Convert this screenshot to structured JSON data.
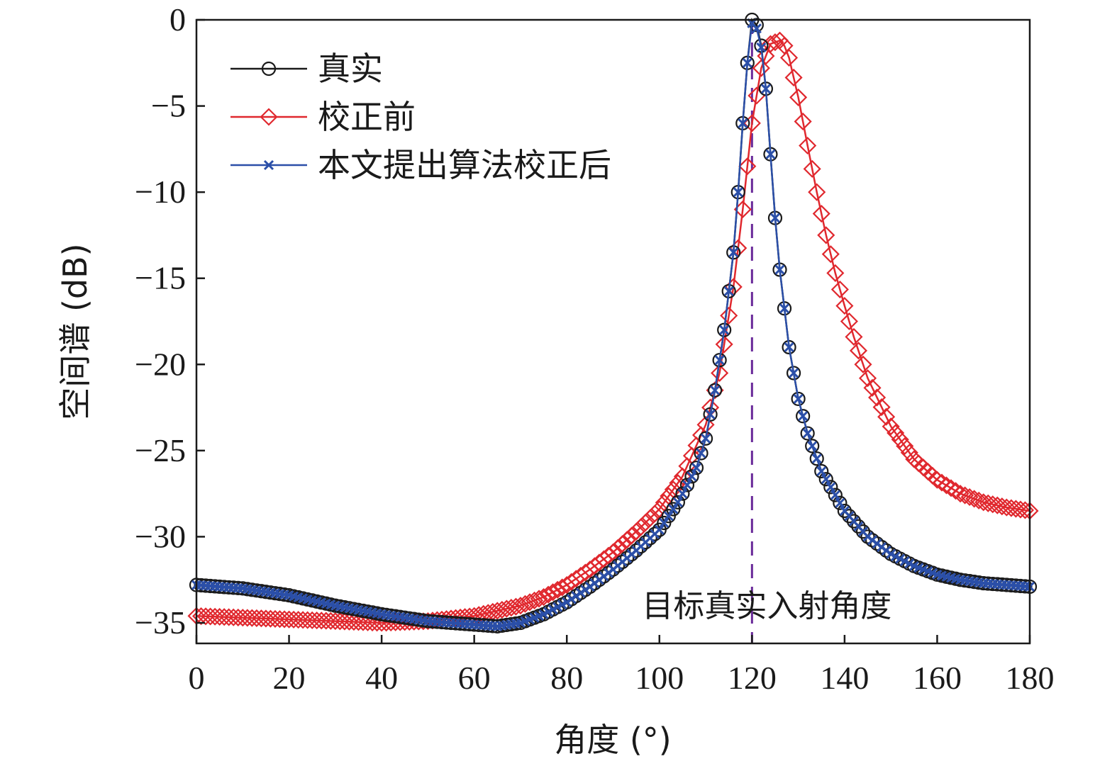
{
  "chart_data": {
    "type": "line",
    "xlabel": "角度 (°)",
    "ylabel": "空间谱 (dB)",
    "xlim": [
      0,
      180
    ],
    "ylim": [
      -36,
      0
    ],
    "xticks": [
      0,
      20,
      40,
      60,
      80,
      100,
      120,
      140,
      160,
      180
    ],
    "yticks": [
      0,
      -5,
      -10,
      -15,
      -20,
      -25,
      -30,
      -35
    ],
    "grid": false,
    "legend_position": "top-left",
    "series": [
      {
        "name": "真实",
        "color": "#1a1a1a",
        "marker": "circle",
        "x": [
          0,
          10,
          20,
          30,
          40,
          50,
          60,
          65,
          70,
          75,
          80,
          85,
          90,
          95,
          100,
          104,
          108,
          110,
          112,
          114,
          116,
          117,
          118,
          119,
          120,
          121,
          122,
          123,
          124,
          125,
          126,
          128,
          130,
          132,
          135,
          140,
          145,
          150,
          155,
          160,
          165,
          170,
          175,
          180
        ],
        "y": [
          -32.8,
          -33.0,
          -33.4,
          -34.0,
          -34.5,
          -34.9,
          -35.1,
          -35.2,
          -35.0,
          -34.5,
          -33.8,
          -32.9,
          -31.9,
          -30.8,
          -29.6,
          -28.0,
          -26.0,
          -24.3,
          -21.5,
          -18.0,
          -13.5,
          -10.0,
          -6.0,
          -2.5,
          0.0,
          -0.3,
          -1.5,
          -4.0,
          -7.8,
          -11.5,
          -14.5,
          -19.0,
          -22.0,
          -24.0,
          -26.2,
          -28.5,
          -30.0,
          -31.0,
          -31.7,
          -32.2,
          -32.5,
          -32.7,
          -32.8,
          -32.9
        ]
      },
      {
        "name": "校正前",
        "color": "#e0282e",
        "marker": "diamond",
        "x": [
          0,
          10,
          20,
          30,
          40,
          50,
          60,
          65,
          70,
          75,
          80,
          85,
          90,
          95,
          100,
          105,
          110,
          113,
          116,
          118,
          120,
          122,
          124,
          126,
          127,
          128,
          130,
          132,
          134,
          136,
          138,
          140,
          142,
          145,
          150,
          155,
          160,
          165,
          170,
          175,
          180
        ],
        "y": [
          -34.6,
          -34.7,
          -34.8,
          -34.9,
          -35.0,
          -34.9,
          -34.6,
          -34.3,
          -34.0,
          -33.5,
          -32.8,
          -31.9,
          -30.9,
          -29.7,
          -28.4,
          -26.5,
          -23.5,
          -20.5,
          -15.5,
          -11.0,
          -6.0,
          -2.8,
          -1.4,
          -1.2,
          -1.5,
          -2.2,
          -4.5,
          -7.3,
          -10.0,
          -12.5,
          -14.7,
          -16.6,
          -18.4,
          -20.8,
          -23.6,
          -25.5,
          -26.7,
          -27.5,
          -28.0,
          -28.3,
          -28.5
        ]
      },
      {
        "name": "本文提出算法校正后",
        "color": "#2b4fa8",
        "marker": "x",
        "x": [
          0,
          10,
          20,
          30,
          40,
          50,
          60,
          65,
          70,
          75,
          80,
          85,
          90,
          95,
          100,
          104,
          108,
          110,
          112,
          114,
          116,
          117,
          118,
          119,
          120,
          121,
          122,
          123,
          124,
          125,
          126,
          128,
          130,
          132,
          135,
          140,
          145,
          150,
          155,
          160,
          165,
          170,
          175,
          180
        ],
        "y": [
          -32.8,
          -33.0,
          -33.4,
          -34.0,
          -34.5,
          -34.9,
          -35.1,
          -35.2,
          -35.0,
          -34.5,
          -33.8,
          -32.9,
          -31.9,
          -30.8,
          -29.6,
          -28.0,
          -26.0,
          -24.3,
          -21.5,
          -18.0,
          -13.5,
          -10.0,
          -6.0,
          -2.5,
          -0.2,
          -0.5,
          -1.6,
          -4.0,
          -7.8,
          -11.5,
          -14.5,
          -19.0,
          -22.0,
          -24.0,
          -26.2,
          -28.5,
          -30.0,
          -31.0,
          -31.7,
          -32.2,
          -32.5,
          -32.7,
          -32.8,
          -32.9
        ]
      }
    ],
    "annotations": [
      {
        "text": "目标真实入射角度",
        "x": 120,
        "style": "dashed-vertical",
        "color": "#6a2a9a"
      }
    ]
  }
}
